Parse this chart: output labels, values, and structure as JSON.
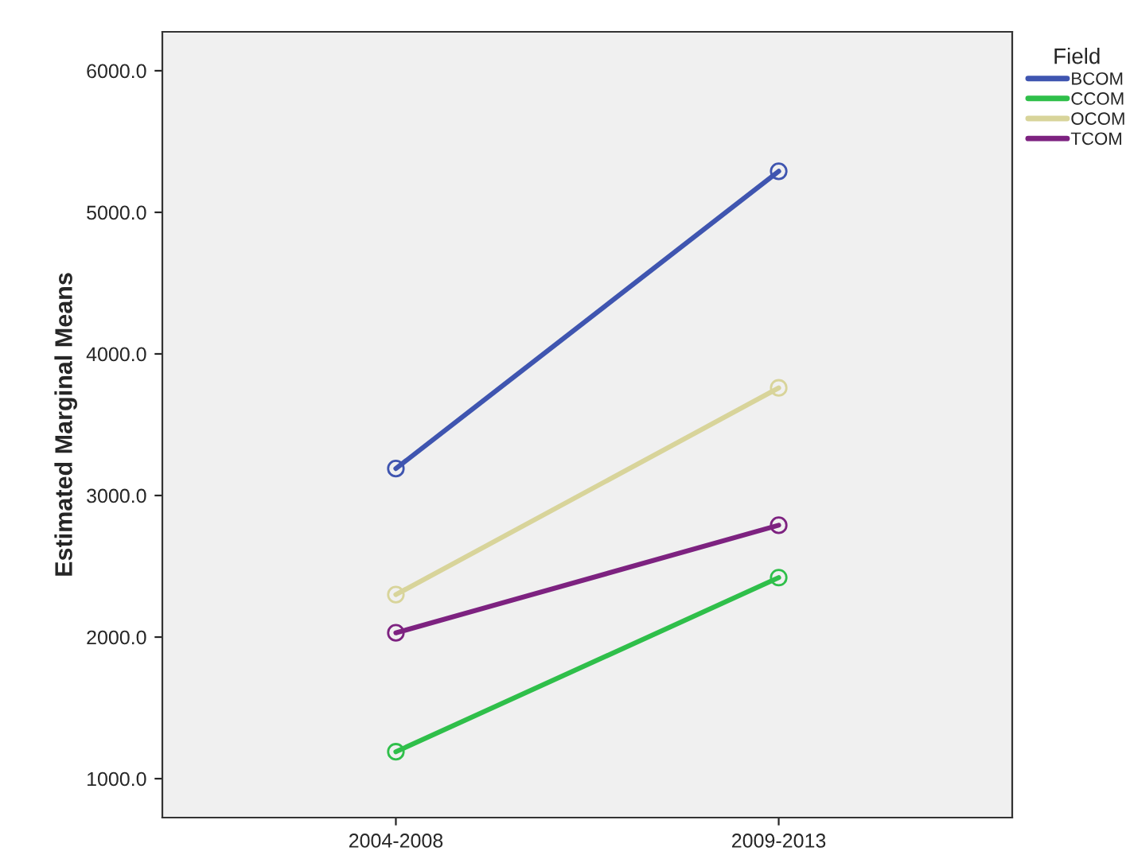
{
  "chart_data": {
    "type": "line",
    "ylabel": "Estimated Marginal Means",
    "legend_title": "Field",
    "categories": [
      "2004-2008",
      "2009-2013"
    ],
    "series": [
      {
        "name": "BCOM",
        "color": "#3f55b0",
        "values": [
          3190,
          5290
        ]
      },
      {
        "name": "CCOM",
        "color": "#2fbf4a",
        "values": [
          1190,
          2420
        ]
      },
      {
        "name": "OCOM",
        "color": "#d8d49a",
        "values": [
          2300,
          3760
        ]
      },
      {
        "name": "TCOM",
        "color": "#7d2280",
        "values": [
          2030,
          2790
        ]
      }
    ],
    "ylim": [
      725,
      6275
    ],
    "yticks": [
      {
        "value": 1000,
        "label": "1000.0"
      },
      {
        "value": 2000,
        "label": "2000.0"
      },
      {
        "value": 3000,
        "label": "3000.0"
      },
      {
        "value": 4000,
        "label": "4000.0"
      },
      {
        "value": 5000,
        "label": "5000.0"
      },
      {
        "value": 6000,
        "label": "6000.0"
      }
    ],
    "grid": false,
    "legend": "top right",
    "marker": "circle",
    "line_style": "solid"
  }
}
